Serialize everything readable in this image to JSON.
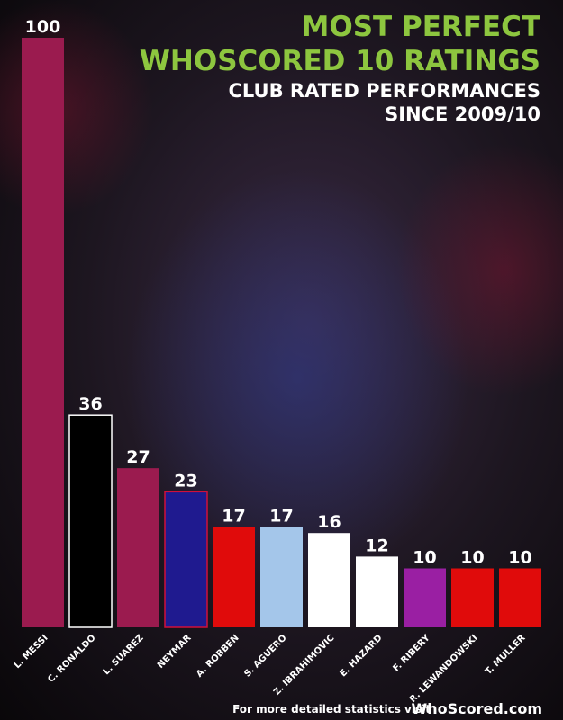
{
  "chart_data": {
    "type": "bar",
    "title": "MOST PERFECT",
    "title_line2": "WHOSCORED 10 RATINGS",
    "subtitle": "CLUB RATED PERFORMANCES",
    "subtitle_line2": "SINCE 2009/10",
    "categories": [
      "L. MESSI",
      "C. RONALDO",
      "L. SUAREZ",
      "NEYMAR",
      "A. ROBBEN",
      "S. AGUERO",
      "Z. IBRAHIMOVIC",
      "E. HAZARD",
      "F. RIBERY",
      "R. LEWANDOWSKI",
      "T. MULLER"
    ],
    "values": [
      100,
      36,
      27,
      23,
      17,
      17,
      16,
      12,
      10,
      10,
      10
    ],
    "colors": [
      "#9b1b4f",
      "#000000",
      "#9b1b4f",
      "#1f1a8f",
      "#e00b0b",
      "#a4c6ea",
      "#ffffff",
      "#ffffff",
      "#9a1fa3",
      "#e00b0b",
      "#e00b0b"
    ],
    "footer": "For more detailed statistics visit",
    "brand": "WhoScored.com"
  }
}
